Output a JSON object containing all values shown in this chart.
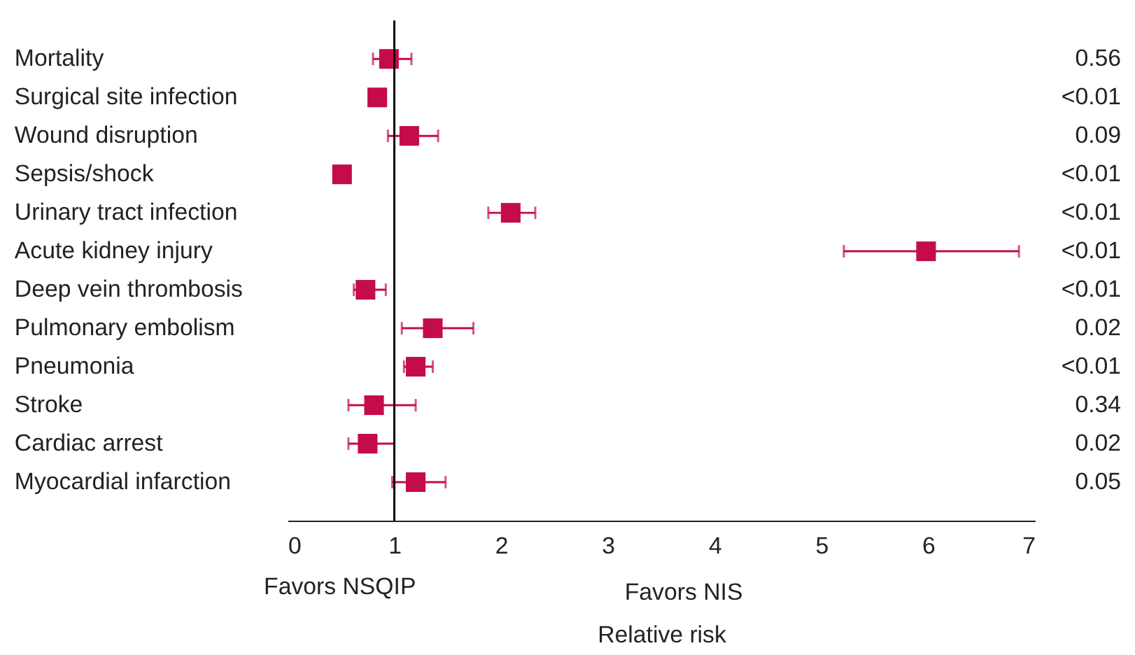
{
  "chart_data": {
    "type": "scatter",
    "orientation": "horizontal",
    "xlabel": "Relative risk",
    "categories": [
      "Mortality",
      "Surgical site infection",
      "Wound disruption",
      "Sepsis/shock",
      "Urinary tract infection",
      "Acute kidney injury",
      "Deep vein thrombosis",
      "Pulmonary embolism",
      "Pneumonia",
      "Stroke",
      "Cardiac arrest",
      "Myocardial infarction"
    ],
    "series": [
      {
        "color": "#c40c4a",
        "marker": "square",
        "values": [
          0.95,
          0.84,
          1.14,
          0.51,
          2.09,
          5.98,
          0.73,
          1.36,
          1.2,
          0.81,
          0.75,
          1.2
        ],
        "errors": [
          [
            0.8,
            1.16
          ],
          null,
          [
            0.94,
            1.41
          ],
          null,
          [
            1.88,
            2.32
          ],
          [
            5.21,
            6.85
          ],
          [
            0.62,
            0.92
          ],
          [
            1.07,
            1.74
          ],
          [
            1.09,
            1.36
          ],
          [
            0.57,
            1.2
          ],
          [
            0.57,
            1.0
          ],
          [
            0.98,
            1.48
          ]
        ]
      }
    ],
    "xlim": [
      0,
      7
    ],
    "xticks": [
      0,
      1,
      2,
      3,
      4,
      5,
      6,
      7
    ],
    "ref_lines": [
      {
        "axis": "x",
        "value": 1,
        "color": "#000000"
      }
    ],
    "annotations": [
      "Favors NSQIP",
      "Favors NIS",
      "0.56",
      "<0.01",
      "0.09",
      "<0.01",
      "<0.01",
      "<0.01",
      "<0.01",
      "0.02",
      "<0.01",
      "0.34",
      "0.02",
      "0.05"
    ],
    "grid": false
  }
}
